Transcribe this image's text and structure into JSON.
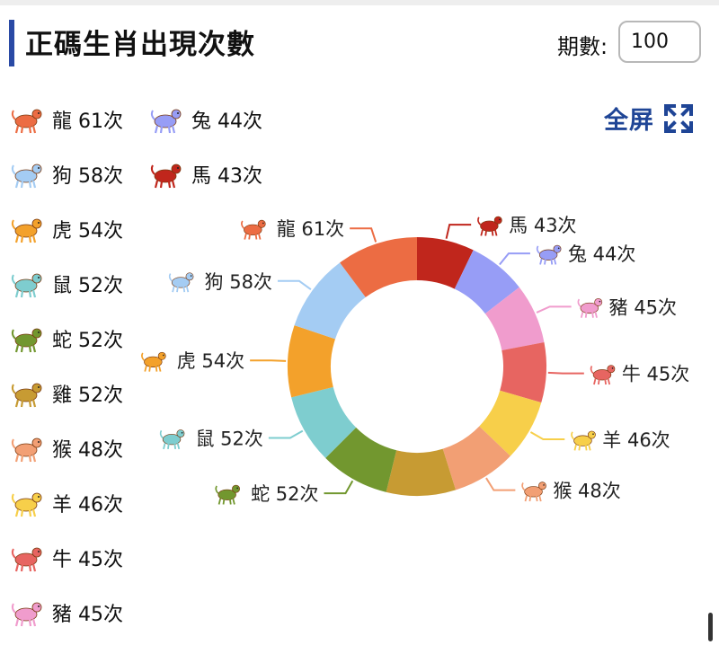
{
  "header": {
    "title": "正碼生肖出現次數",
    "period_label": "期數:",
    "period_value": "100",
    "fullscreen_label": "全屏"
  },
  "colors": {
    "accent": "#2a4aa5",
    "fullscreen": "#1f4596"
  },
  "chart_data": {
    "type": "pie",
    "donut": true,
    "title": "正碼生肖出現次數",
    "unit": "次",
    "categories": [
      "馬",
      "兔",
      "豬",
      "牛",
      "羊",
      "猴",
      "雞",
      "蛇",
      "鼠",
      "虎",
      "狗",
      "龍"
    ],
    "values": [
      43,
      44,
      45,
      45,
      46,
      48,
      52,
      52,
      52,
      54,
      58,
      61
    ],
    "colors": [
      "#c0261c",
      "#979df6",
      "#f09ccd",
      "#e76561",
      "#f7cf4a",
      "#f29f74",
      "#c79b33",
      "#72972f",
      "#7ecdcf",
      "#f3a12b",
      "#a4ccf3",
      "#ec6c43"
    ],
    "labels": [
      "馬 43次",
      "兔 44次",
      "豬 45次",
      "牛 45次",
      "羊 46次",
      "猴 48次",
      "",
      "蛇 52次",
      "鼠 52次",
      "虎 54次",
      "狗 58次",
      "龍 61次"
    ],
    "legend": {
      "placement": "left",
      "entries": [
        {
          "label": "龍 61次",
          "icon": "dragon-icon",
          "color": "#ec6c43"
        },
        {
          "label": "狗 58次",
          "icon": "dog-icon",
          "color": "#a4ccf3"
        },
        {
          "label": "虎 54次",
          "icon": "tiger-icon",
          "color": "#f3a12b"
        },
        {
          "label": "鼠 52次",
          "icon": "rat-icon",
          "color": "#7ecdcf"
        },
        {
          "label": "蛇 52次",
          "icon": "snake-icon",
          "color": "#72972f"
        },
        {
          "label": "雞 52次",
          "icon": "rooster-icon",
          "color": "#c79b33"
        },
        {
          "label": "猴 48次",
          "icon": "monkey-icon",
          "color": "#f29f74"
        },
        {
          "label": "羊 46次",
          "icon": "goat-icon",
          "color": "#f7cf4a"
        },
        {
          "label": "牛 45次",
          "icon": "ox-icon",
          "color": "#e76561"
        },
        {
          "label": "豬 45次",
          "icon": "pig-icon",
          "color": "#f09ccd"
        },
        {
          "label": "兔 44次",
          "icon": "rabbit-icon",
          "color": "#979df6"
        },
        {
          "label": "馬 43次",
          "icon": "horse-icon",
          "color": "#c0261c"
        }
      ]
    }
  }
}
